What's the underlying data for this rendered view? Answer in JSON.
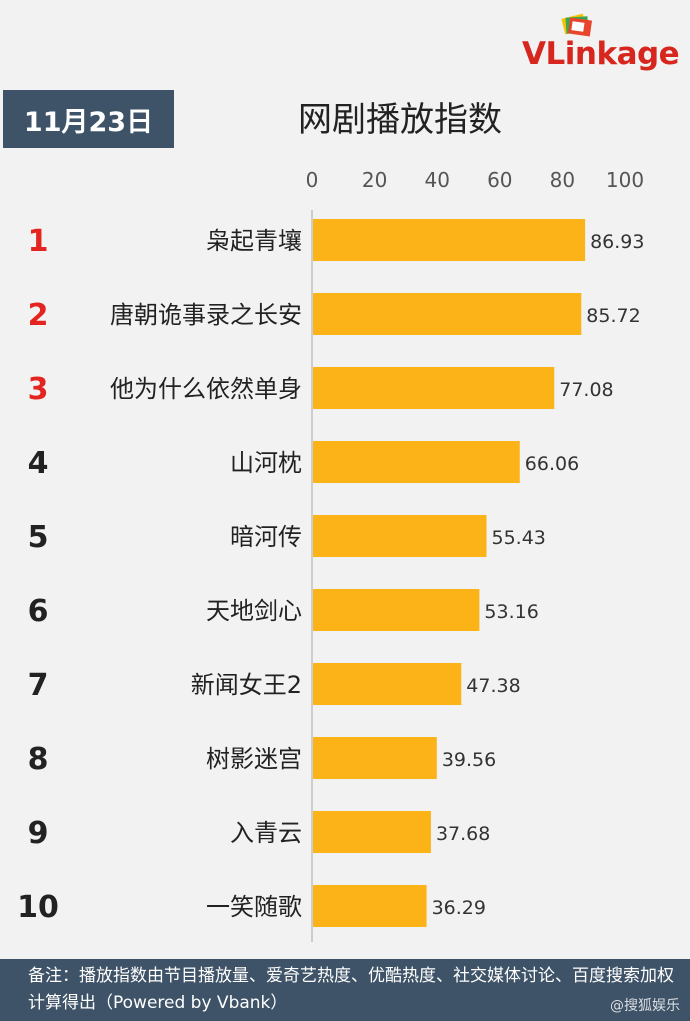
{
  "logo": {
    "brand_v": "V",
    "brand_rest": "Linkage"
  },
  "date": "11月23日",
  "title": "网剧播放指数",
  "footer": {
    "note": "备注：播放指数由节目播放量、爱奇艺热度、优酷热度、社交媒体讨论、百度搜索加权计算得出（Powered by Vbank）",
    "watermark": "@搜狐娱乐"
  },
  "colors": {
    "bar": "#fbb318",
    "rank_top": "#e32420",
    "rank_other": "#222222",
    "badge_bg": "#3e5367"
  },
  "chart_data": {
    "type": "bar",
    "orientation": "horizontal",
    "title": "网剧播放指数",
    "xlim": [
      0,
      100
    ],
    "xticks": [
      0,
      20,
      40,
      60,
      80,
      100
    ],
    "grid": false,
    "ranks": [
      "1",
      "2",
      "3",
      "4",
      "5",
      "6",
      "7",
      "8",
      "9",
      "10"
    ],
    "categories": [
      "枭起青壤",
      "唐朝诡事录之长安",
      "他为什么依然单身",
      "山河枕",
      "暗河传",
      "天地剑心",
      "新闻女王2",
      "树影迷宫",
      "入青云",
      "一笑随歌"
    ],
    "values": [
      86.93,
      85.72,
      77.08,
      66.06,
      55.43,
      53.16,
      47.38,
      39.56,
      37.68,
      36.29
    ],
    "value_labels": [
      "86.93",
      "85.72",
      "77.08",
      "66.06",
      "55.43",
      "53.16",
      "47.38",
      "39.56",
      "37.68",
      "36.29"
    ]
  }
}
